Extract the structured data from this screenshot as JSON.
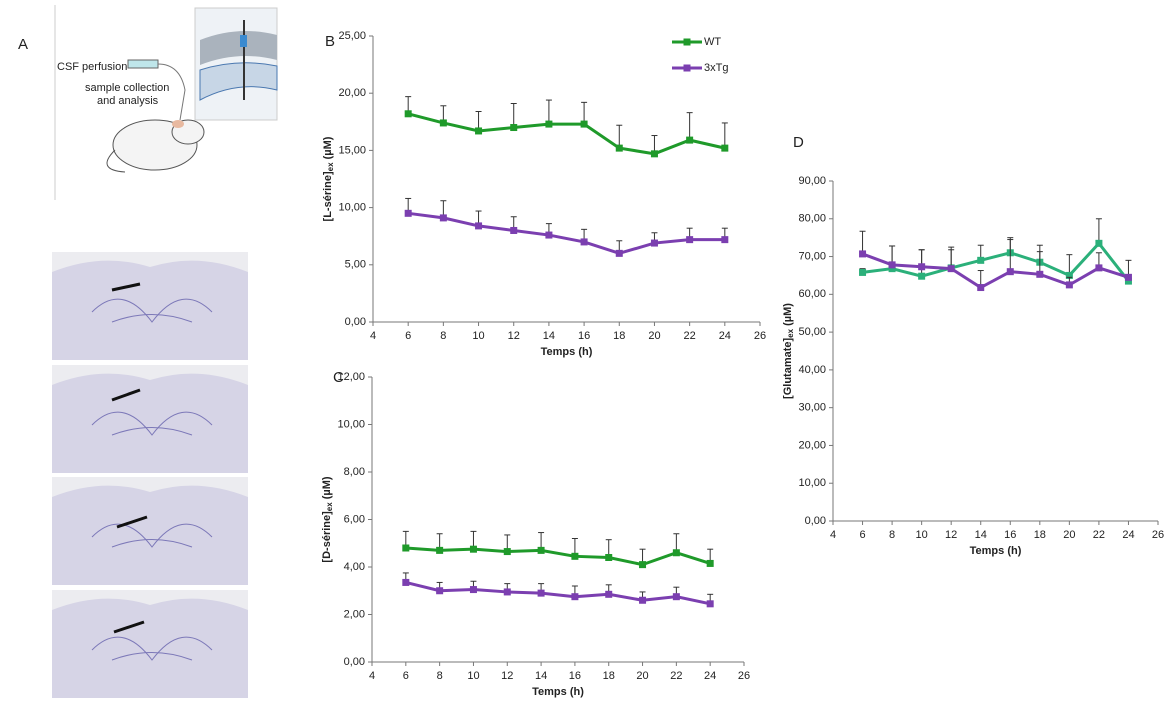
{
  "panel_a": {
    "panel": "A",
    "illustration_labels": [
      "CSF perfusion",
      "sample collection",
      "and analysis"
    ]
  },
  "chart_data": [
    {
      "type": "line",
      "panel": "B",
      "x_label": "Temps (h)",
      "y_label": {
        "text": "[L-sérine]",
        "sub": "ex",
        "unit": " (µM)"
      },
      "x": [
        6,
        8,
        10,
        12,
        14,
        16,
        18,
        20,
        22,
        24
      ],
      "xlim": [
        4,
        26
      ],
      "xticks": [
        4,
        6,
        8,
        10,
        12,
        14,
        16,
        18,
        20,
        22,
        24,
        26
      ],
      "ylim": [
        0,
        25
      ],
      "yticks": [
        {
          "value": 0,
          "label": "0,00"
        },
        {
          "value": 5,
          "label": "5,00"
        },
        {
          "value": 10,
          "label": "10,00"
        },
        {
          "value": 15,
          "label": "15,00"
        },
        {
          "value": 20,
          "label": "20,00"
        },
        {
          "value": 25,
          "label": "25,00"
        }
      ],
      "legend": "top-right",
      "series": [
        {
          "name": "WT",
          "color": "#1f9a2a",
          "values": [
            18.2,
            17.4,
            16.7,
            17.0,
            17.3,
            17.3,
            15.2,
            14.7,
            15.9,
            15.2
          ],
          "errors": [
            1.5,
            1.5,
            1.7,
            2.1,
            2.1,
            1.9,
            2.0,
            1.6,
            2.4,
            2.2
          ]
        },
        {
          "name": "3xTg",
          "color": "#7b3fb0",
          "values": [
            9.5,
            9.1,
            8.4,
            8.0,
            7.6,
            7.0,
            6.0,
            6.9,
            7.2,
            7.2
          ],
          "errors": [
            1.3,
            1.5,
            1.3,
            1.2,
            1.0,
            1.1,
            1.1,
            0.9,
            1.0,
            1.0
          ]
        }
      ]
    },
    {
      "type": "line",
      "panel": "C",
      "x_label": "Temps (h)",
      "y_label": {
        "text": "[D-sérine]",
        "sub": "ex",
        "unit": " (µM)"
      },
      "x": [
        6,
        8,
        10,
        12,
        14,
        16,
        18,
        20,
        22,
        24
      ],
      "xlim": [
        4,
        26
      ],
      "xticks": [
        4,
        6,
        8,
        10,
        12,
        14,
        16,
        18,
        20,
        22,
        24,
        26
      ],
      "ylim": [
        0,
        12
      ],
      "yticks": [
        {
          "value": 0,
          "label": "0,00"
        },
        {
          "value": 2,
          "label": "2,00"
        },
        {
          "value": 4,
          "label": "4,00"
        },
        {
          "value": 6,
          "label": "6,00"
        },
        {
          "value": 8,
          "label": "8,00"
        },
        {
          "value": 10,
          "label": "10,00"
        },
        {
          "value": 12,
          "label": "12,00"
        }
      ],
      "series": [
        {
          "color": "#1f9a2a",
          "values": [
            4.8,
            4.7,
            4.75,
            4.65,
            4.7,
            4.45,
            4.4,
            4.1,
            4.6,
            4.15
          ],
          "errors": [
            0.7,
            0.7,
            0.75,
            0.7,
            0.75,
            0.75,
            0.75,
            0.65,
            0.8,
            0.6
          ]
        },
        {
          "color": "#7b3fb0",
          "values": [
            3.35,
            3.0,
            3.05,
            2.95,
            2.9,
            2.75,
            2.85,
            2.6,
            2.75,
            2.45
          ],
          "errors": [
            0.4,
            0.35,
            0.35,
            0.35,
            0.4,
            0.45,
            0.4,
            0.35,
            0.4,
            0.4
          ]
        }
      ]
    },
    {
      "type": "line",
      "panel": "D",
      "x_label": "Temps (h)",
      "y_label": {
        "text": "[Glutamate]",
        "sub": "ex",
        "unit": " (µM)"
      },
      "x": [
        6,
        8,
        10,
        12,
        14,
        16,
        18,
        20,
        22,
        24
      ],
      "xlim": [
        4,
        26
      ],
      "xticks": [
        4,
        6,
        8,
        10,
        12,
        14,
        16,
        18,
        20,
        22,
        24,
        26
      ],
      "ylim": [
        0,
        90
      ],
      "yticks": [
        {
          "value": 0,
          "label": "0,00"
        },
        {
          "value": 10,
          "label": "10,00"
        },
        {
          "value": 20,
          "label": "20,00"
        },
        {
          "value": 30,
          "label": "30,00"
        },
        {
          "value": 40,
          "label": "40,00"
        },
        {
          "value": 50,
          "label": "50,00"
        },
        {
          "value": 60,
          "label": "60,00"
        },
        {
          "value": 70,
          "label": "70,00"
        },
        {
          "value": 80,
          "label": "80,00"
        },
        {
          "value": 90,
          "label": "90,00"
        }
      ],
      "series": [
        {
          "color": "#2bb07a",
          "values": [
            65.8,
            66.8,
            64.8,
            67.0,
            69.0,
            71.0,
            68.5,
            65.0,
            73.5,
            63.5
          ],
          "errors": [
            1,
            6,
            7,
            5.5,
            4,
            4,
            4.5,
            5.5,
            6.5,
            0
          ]
        },
        {
          "color": "#7b3fb0",
          "values": [
            70.7,
            67.8,
            67.3,
            66.8,
            61.8,
            66.0,
            65.3,
            62.5,
            67.0,
            64.5
          ],
          "errors": [
            6,
            5,
            4.5,
            5,
            4.5,
            8.5,
            6,
            2,
            4,
            4.5
          ]
        }
      ]
    }
  ]
}
